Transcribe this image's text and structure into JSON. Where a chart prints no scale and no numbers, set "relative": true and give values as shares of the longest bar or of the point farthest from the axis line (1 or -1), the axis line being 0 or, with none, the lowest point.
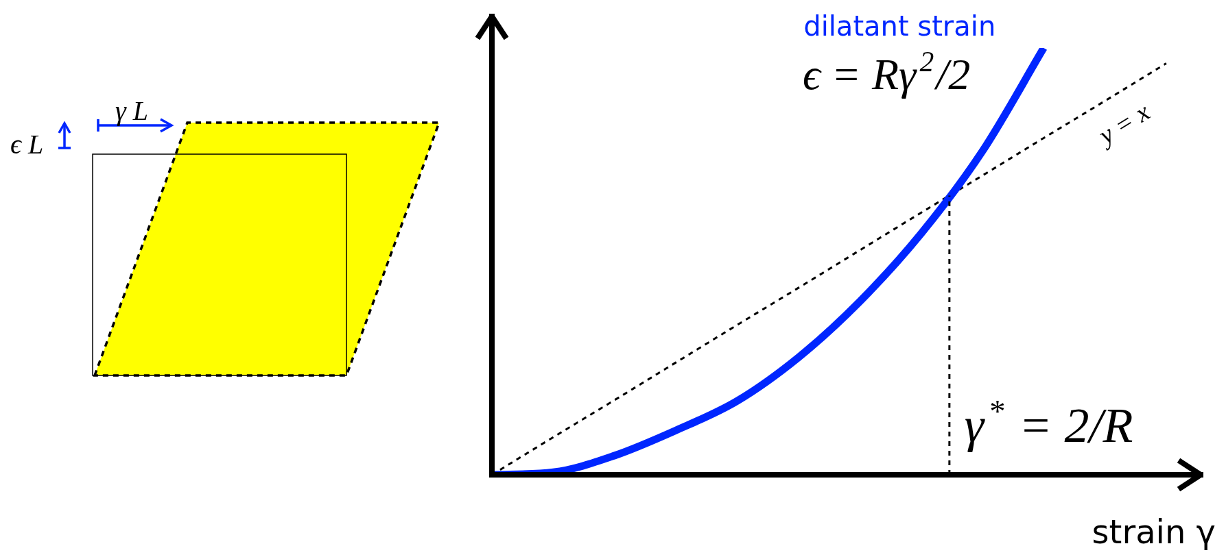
{
  "chart_data": {
    "type": "line",
    "relative": true,
    "xlabel": "strain γ",
    "legend": false,
    "grid": false,
    "marker": "none",
    "categories": [
      null,
      null,
      null,
      null,
      null,
      null,
      null,
      null,
      null,
      null,
      null,
      null
    ],
    "series": [
      {
        "name": "dilatant strain",
        "color": "#0026ff",
        "line_style": "solid",
        "values": [
          0,
          0.006,
          0.045,
          0.104,
          0.173,
          0.275,
          0.406,
          0.565,
          0.758,
          1,
          null,
          null
        ]
      },
      {
        "name": "y = x",
        "color": "#000000",
        "line_style": "dashed",
        "values": [
          0,
          0.088,
          0.175,
          0.263,
          0.351,
          0.438,
          0.526,
          0.614,
          0.701,
          0.789,
          0.876,
          0.964
        ]
      }
    ],
    "annotations": [
      "ϵ = Rγ$^{2}$/2",
      "γ$^{*}$ = 2/R",
      "γ L",
      "ϵ L"
    ]
  }
}
